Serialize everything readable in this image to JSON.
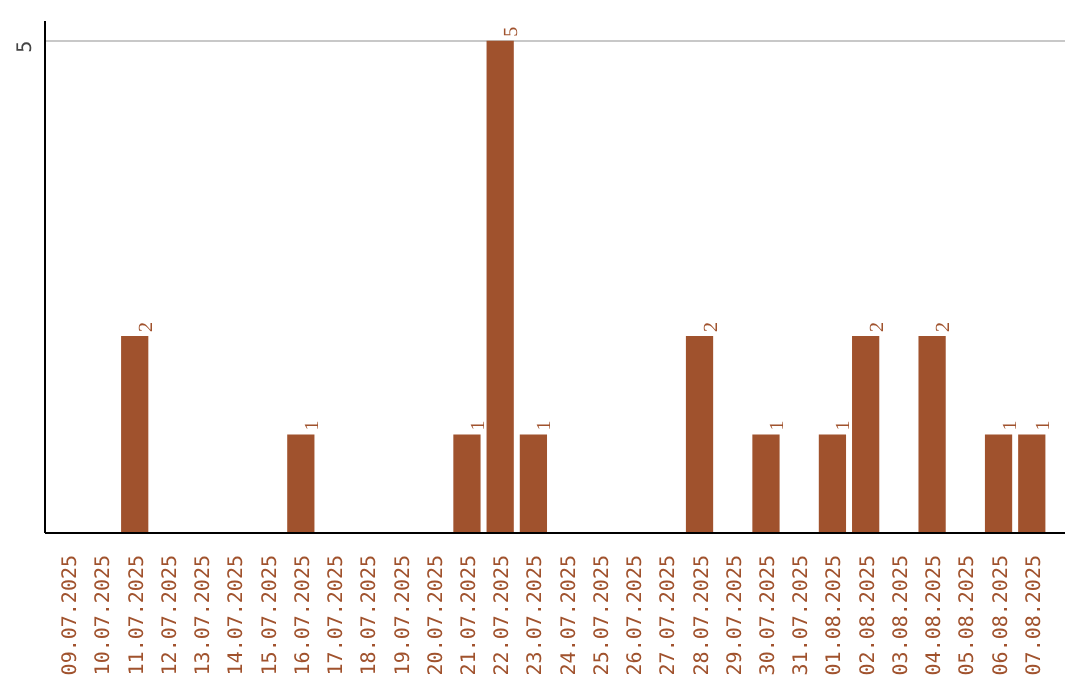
{
  "chart_data": {
    "type": "bar",
    "categories": [
      "09.07.2025",
      "10.07.2025",
      "11.07.2025",
      "12.07.2025",
      "13.07.2025",
      "14.07.2025",
      "15.07.2025",
      "16.07.2025",
      "17.07.2025",
      "18.07.2025",
      "19.07.2025",
      "20.07.2025",
      "21.07.2025",
      "22.07.2025",
      "23.07.2025",
      "24.07.2025",
      "25.07.2025",
      "26.07.2025",
      "27.07.2025",
      "28.07.2025",
      "29.07.2025",
      "30.07.2025",
      "31.07.2025",
      "01.08.2025",
      "02.08.2025",
      "03.08.2025",
      "04.08.2025",
      "05.08.2025",
      "06.08.2025",
      "07.08.2025"
    ],
    "values": [
      0,
      0,
      2,
      0,
      0,
      0,
      0,
      1,
      0,
      0,
      0,
      0,
      1,
      5,
      1,
      0,
      0,
      0,
      0,
      2,
      0,
      1,
      0,
      1,
      2,
      0,
      2,
      0,
      1,
      1
    ],
    "value_labels": [
      null,
      null,
      "2",
      null,
      null,
      null,
      null,
      "1",
      null,
      null,
      null,
      null,
      "1",
      "5",
      "1",
      null,
      null,
      null,
      null,
      "2",
      null,
      "1",
      null,
      "1",
      "2",
      null,
      "2",
      null,
      "1",
      "1"
    ],
    "color": "#a0522d",
    "ylim": [
      0,
      5.2
    ],
    "yticks": [
      5
    ],
    "grid": "y"
  }
}
